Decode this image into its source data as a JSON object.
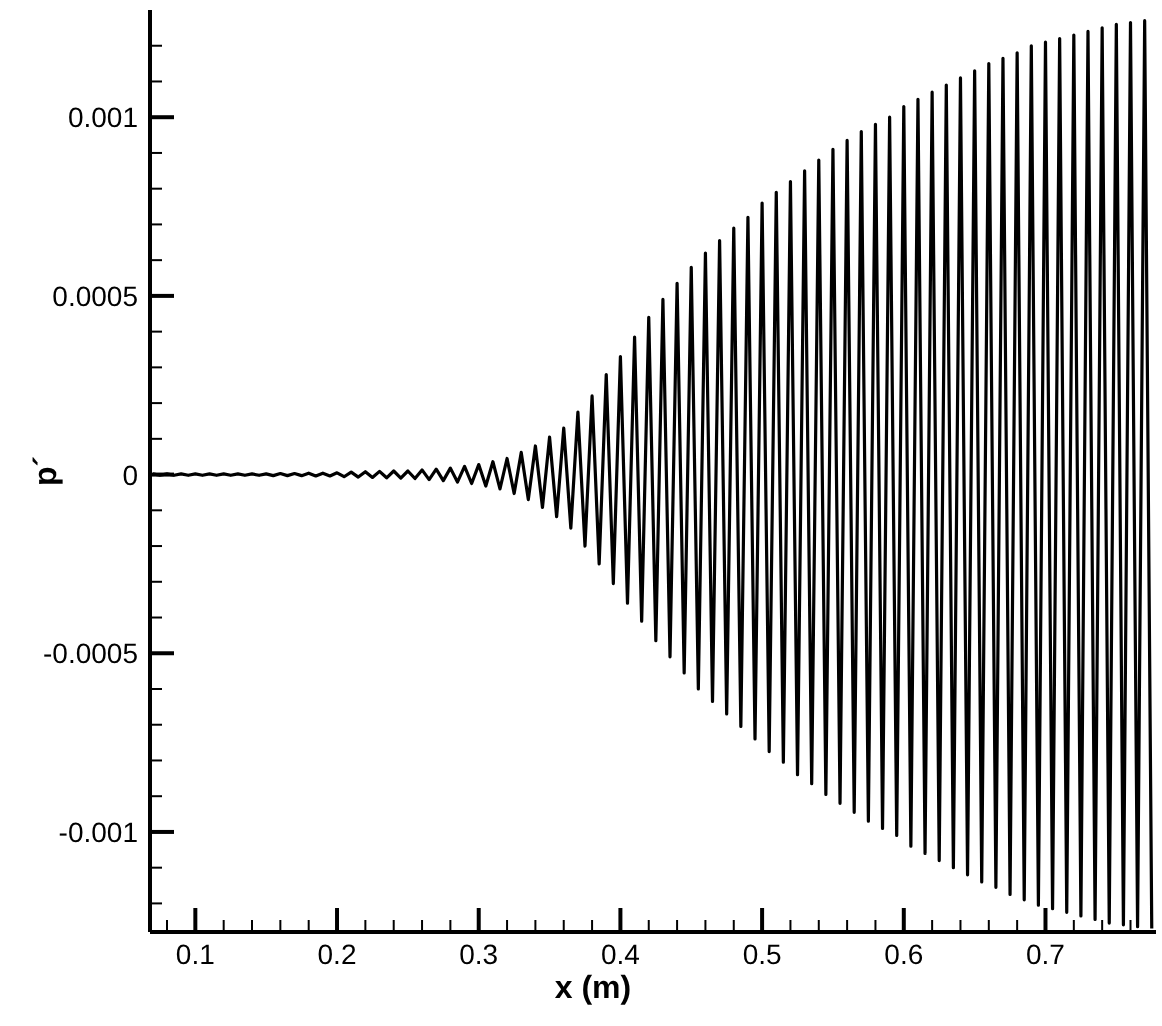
{
  "chart_data": {
    "type": "line",
    "xlabel": "x (m)",
    "ylabel": "p´",
    "xlim": [
      0.068,
      0.778
    ],
    "ylim": [
      -0.00128,
      0.0013
    ],
    "xticks": [
      {
        "value": 0.08,
        "label": null
      },
      0.1,
      {
        "value": 0.12,
        "label": null
      },
      {
        "value": 0.14,
        "label": null
      },
      {
        "value": 0.16,
        "label": null
      },
      {
        "value": 0.18,
        "label": null
      },
      0.2,
      {
        "value": 0.22,
        "label": null
      },
      {
        "value": 0.24,
        "label": null
      },
      {
        "value": 0.26,
        "label": null
      },
      {
        "value": 0.28,
        "label": null
      },
      0.3,
      {
        "value": 0.32,
        "label": null
      },
      {
        "value": 0.34,
        "label": null
      },
      {
        "value": 0.36,
        "label": null
      },
      {
        "value": 0.38,
        "label": null
      },
      0.4,
      {
        "value": 0.42,
        "label": null
      },
      {
        "value": 0.44,
        "label": null
      },
      {
        "value": 0.46,
        "label": null
      },
      {
        "value": 0.48,
        "label": null
      },
      0.5,
      {
        "value": 0.52,
        "label": null
      },
      {
        "value": 0.54,
        "label": null
      },
      {
        "value": 0.56,
        "label": null
      },
      {
        "value": 0.58,
        "label": null
      },
      0.6,
      {
        "value": 0.62,
        "label": null
      },
      {
        "value": 0.64,
        "label": null
      },
      {
        "value": 0.66,
        "label": null
      },
      {
        "value": 0.68,
        "label": null
      },
      0.7,
      {
        "value": 0.72,
        "label": null
      },
      {
        "value": 0.74,
        "label": null
      },
      {
        "value": 0.76,
        "label": null
      }
    ],
    "yticks": [
      {
        "value": -0.0012,
        "label": null
      },
      {
        "value": -0.0011,
        "label": null
      },
      -0.001,
      {
        "value": -0.0009,
        "label": null
      },
      {
        "value": -0.0008,
        "label": null
      },
      {
        "value": -0.0007,
        "label": null
      },
      {
        "value": -0.0006,
        "label": null
      },
      -0.0005,
      {
        "value": -0.0004,
        "label": null
      },
      {
        "value": -0.0003,
        "label": null
      },
      {
        "value": -0.0002,
        "label": null
      },
      {
        "value": -0.0001,
        "label": null
      },
      0,
      {
        "value": 0.0001,
        "label": null
      },
      {
        "value": 0.0002,
        "label": null
      },
      {
        "value": 0.0003,
        "label": null
      },
      {
        "value": 0.0004,
        "label": null
      },
      0.0005,
      {
        "value": 0.0006,
        "label": null
      },
      {
        "value": 0.0007,
        "label": null
      },
      {
        "value": 0.0008,
        "label": null
      },
      {
        "value": 0.0009,
        "label": null
      },
      0.001,
      {
        "value": 0.0011,
        "label": null
      },
      {
        "value": 0.0012,
        "label": null
      }
    ],
    "grid": false,
    "marker": "none",
    "line_style": "solid",
    "series": [
      {
        "color": "#000000",
        "x": [
          0.07,
          0.075,
          0.08,
          0.085,
          0.09,
          0.095,
          0.1,
          0.105,
          0.11,
          0.115,
          0.12,
          0.125,
          0.13,
          0.135,
          0.14,
          0.145,
          0.15,
          0.155,
          0.16,
          0.165,
          0.17,
          0.175,
          0.18,
          0.185,
          0.19,
          0.195,
          0.2,
          0.205,
          0.21,
          0.215,
          0.22,
          0.225,
          0.23,
          0.235,
          0.24,
          0.245,
          0.25,
          0.255,
          0.26,
          0.265,
          0.27,
          0.275,
          0.28,
          0.285,
          0.29,
          0.295,
          0.3,
          0.305,
          0.31,
          0.315,
          0.32,
          0.325,
          0.33,
          0.335,
          0.34,
          0.345,
          0.35,
          0.355,
          0.36,
          0.365,
          0.37,
          0.375,
          0.38,
          0.385,
          0.39,
          0.395,
          0.4,
          0.405,
          0.41,
          0.415,
          0.42,
          0.425,
          0.43,
          0.435,
          0.44,
          0.445,
          0.45,
          0.455,
          0.46,
          0.465,
          0.47,
          0.475,
          0.48,
          0.485,
          0.49,
          0.495,
          0.5,
          0.505,
          0.51,
          0.515,
          0.52,
          0.525,
          0.53,
          0.535,
          0.54,
          0.545,
          0.55,
          0.555,
          0.56,
          0.565,
          0.57,
          0.575,
          0.58,
          0.585,
          0.59,
          0.595,
          0.6,
          0.605,
          0.61,
          0.615,
          0.62,
          0.625,
          0.63,
          0.635,
          0.64,
          0.645,
          0.65,
          0.655,
          0.66,
          0.665,
          0.67,
          0.675,
          0.68,
          0.685,
          0.69,
          0.695,
          0.7,
          0.705,
          0.71,
          0.715,
          0.72,
          0.725,
          0.73,
          0.735,
          0.74,
          0.745,
          0.75,
          0.755,
          0.76,
          0.765,
          0.77,
          0.775
        ],
        "values": [
          2e-06,
          -2e-06,
          2e-06,
          -2e-06,
          2e-06,
          -2e-06,
          2e-06,
          -2e-06,
          2e-06,
          -2e-06,
          2e-06,
          -2e-06,
          2e-06,
          -2e-06,
          2e-06,
          -2e-06,
          2e-06,
          -3e-06,
          3e-06,
          -3e-06,
          3e-06,
          -3e-06,
          4e-06,
          -4e-06,
          4e-06,
          -4e-06,
          5e-06,
          -6e-06,
          7e-06,
          -7e-06,
          8e-06,
          -8e-06,
          9e-06,
          -9e-06,
          1e-05,
          -1e-05,
          1e-05,
          -1.1e-05,
          1.3e-05,
          -1.4e-05,
          1.5e-05,
          -1.7e-05,
          1.8e-05,
          -2.1e-05,
          2.3e-05,
          -2.5e-05,
          2.8e-05,
          -3.2e-05,
          3.6e-05,
          -4e-05,
          4.5e-05,
          -5.3e-05,
          6.2e-05,
          -7e-05,
          8e-05,
          -9.2e-05,
          0.000105,
          -0.000118,
          0.00013,
          -0.00015,
          0.000175,
          -0.0002,
          0.00022,
          -0.00025,
          0.00028,
          -0.000305,
          0.00033,
          -0.00036,
          0.000385,
          -0.00041,
          0.00044,
          -0.000465,
          0.00049,
          -0.00051,
          0.000535,
          -0.000555,
          0.00058,
          -0.0006,
          0.00062,
          -0.000635,
          0.000655,
          -0.00067,
          0.00069,
          -0.000705,
          0.00072,
          -0.00074,
          0.00076,
          -0.000775,
          0.00079,
          -0.000805,
          0.00082,
          -0.00084,
          0.00085,
          -0.000865,
          0.00088,
          -0.000895,
          0.00091,
          -0.00092,
          0.000935,
          -0.000945,
          0.00096,
          -0.00097,
          0.00098,
          -0.00099,
          0.001,
          -0.00101,
          0.00103,
          -0.00104,
          0.00105,
          -0.00106,
          0.00107,
          -0.00108,
          0.00109,
          -0.0011,
          0.00111,
          -0.00112,
          0.00113,
          -0.00114,
          0.00115,
          -0.001155,
          0.001165,
          -0.001175,
          0.00118,
          -0.00119,
          0.0012,
          -0.001205,
          0.00121,
          -0.001215,
          0.00122,
          -0.001225,
          0.00123,
          -0.001235,
          0.00124,
          -0.001245,
          0.00125,
          -0.001255,
          0.00126,
          -0.00126,
          0.001265,
          -0.001265,
          0.00127,
          -0.00127
        ]
      }
    ]
  }
}
